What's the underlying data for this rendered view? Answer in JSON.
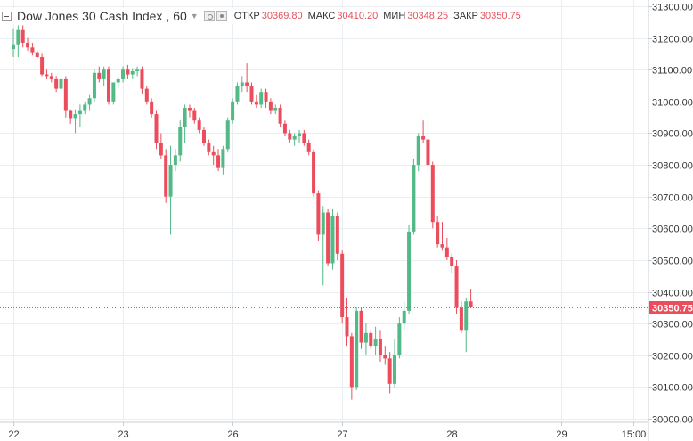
{
  "legend": {
    "symbol": "Dow Jones 30 Cash Index",
    "resolution": ", 60",
    "open_label": "ОТКР",
    "open_value": "30369.80",
    "high_label": "МАКС",
    "high_value": "30410.20",
    "low_label": "МИН",
    "low_value": "30348.25",
    "close_label": "ЗАКР",
    "close_value": "30350.75"
  },
  "colors": {
    "up": "#53b987",
    "down": "#eb4d5c",
    "grid": "#e9eef2",
    "axis_text": "#333333",
    "price_tag": "#eb4d5c"
  },
  "chart_data": {
    "type": "candlestick",
    "y_ticks": [
      30000,
      30100,
      30200,
      30300,
      30400,
      30500,
      30600,
      30700,
      30800,
      30900,
      31000,
      31100,
      31200,
      31300
    ],
    "y_tick_labels": [
      "30000.00",
      "30100.00",
      "30200.00",
      "30300.00",
      "30400.00",
      "30500.00",
      "30600.00",
      "30700.00",
      "30800.00",
      "30900.00",
      "31000.00",
      "31100.00",
      "31200.00",
      "31300.00"
    ],
    "ylim": [
      29980,
      31310
    ],
    "x_ticks": [
      {
        "label": "22",
        "bar": 0
      },
      {
        "label": "23",
        "bar": 23
      },
      {
        "label": "26",
        "bar": 46
      },
      {
        "label": "27",
        "bar": 69
      },
      {
        "label": "28",
        "bar": 92
      },
      {
        "label": "29",
        "bar": 115
      },
      {
        "label": "15:00",
        "bar": 130
      }
    ],
    "last_price": 30350.75,
    "last_price_label": "30350.75",
    "bars": [
      [
        31165,
        31230,
        31140,
        31180
      ],
      [
        31180,
        31240,
        31140,
        31225
      ],
      [
        31225,
        31240,
        31170,
        31185
      ],
      [
        31185,
        31200,
        31160,
        31170
      ],
      [
        31170,
        31185,
        31145,
        31155
      ],
      [
        31155,
        31160,
        31135,
        31140
      ],
      [
        31140,
        31150,
        31080,
        31085
      ],
      [
        31085,
        31100,
        31070,
        31080
      ],
      [
        31080,
        31090,
        31060,
        31070
      ],
      [
        31070,
        31080,
        31030,
        31040
      ],
      [
        31040,
        31090,
        31020,
        31070
      ],
      [
        31070,
        31080,
        30950,
        30970
      ],
      [
        30970,
        30975,
        30930,
        30945
      ],
      [
        30945,
        30975,
        30900,
        30960
      ],
      [
        30960,
        30990,
        30920,
        30970
      ],
      [
        30970,
        31000,
        30960,
        30990
      ],
      [
        30990,
        31020,
        30970,
        31010
      ],
      [
        31010,
        31100,
        31000,
        31090
      ],
      [
        31090,
        31110,
        31060,
        31070
      ],
      [
        31070,
        31110,
        31050,
        31100
      ],
      [
        31100,
        31110,
        30990,
        31000
      ],
      [
        31000,
        31060,
        30990,
        31060
      ],
      [
        31060,
        31080,
        31040,
        31070
      ],
      [
        31070,
        31110,
        31060,
        31100
      ],
      [
        31100,
        31115,
        31070,
        31085
      ],
      [
        31085,
        31105,
        31070,
        31095
      ],
      [
        31095,
        31110,
        31080,
        31100
      ],
      [
        31100,
        31110,
        31025,
        31040
      ],
      [
        31040,
        31050,
        30990,
        31000
      ],
      [
        31000,
        31010,
        30950,
        30960
      ],
      [
        30960,
        30970,
        30850,
        30870
      ],
      [
        30870,
        30900,
        30820,
        30830
      ],
      [
        30830,
        30850,
        30680,
        30700
      ],
      [
        30700,
        30860,
        30580,
        30800
      ],
      [
        30800,
        30850,
        30780,
        30830
      ],
      [
        30830,
        30940,
        30810,
        30920
      ],
      [
        30920,
        30990,
        30870,
        30980
      ],
      [
        30980,
        30990,
        30950,
        30970
      ],
      [
        30970,
        30980,
        30930,
        30940
      ],
      [
        30940,
        30950,
        30900,
        30910
      ],
      [
        30910,
        30920,
        30860,
        30870
      ],
      [
        30870,
        30880,
        30830,
        30840
      ],
      [
        30840,
        30860,
        30800,
        30830
      ],
      [
        30830,
        30850,
        30780,
        30790
      ],
      [
        30790,
        30860,
        30770,
        30850
      ],
      [
        30850,
        30950,
        30840,
        30940
      ],
      [
        30940,
        31010,
        30930,
        31000
      ],
      [
        31000,
        31060,
        30990,
        31050
      ],
      [
        31050,
        31080,
        31030,
        31060
      ],
      [
        31060,
        31120,
        31030,
        31050
      ],
      [
        31050,
        31060,
        30990,
        31000
      ],
      [
        31000,
        31020,
        30980,
        30990
      ],
      [
        30990,
        31040,
        30980,
        31030
      ],
      [
        31030,
        31040,
        30980,
        31000
      ],
      [
        31000,
        31010,
        30960,
        30970
      ],
      [
        30970,
        30990,
        30960,
        30980
      ],
      [
        30980,
        30990,
        30920,
        30930
      ],
      [
        30930,
        30940,
        30890,
        30900
      ],
      [
        30900,
        30910,
        30870,
        30880
      ],
      [
        30880,
        30900,
        30860,
        30890
      ],
      [
        30890,
        30910,
        30870,
        30900
      ],
      [
        30900,
        30910,
        30860,
        30870
      ],
      [
        30870,
        30880,
        30830,
        30840
      ],
      [
        30840,
        30850,
        30700,
        30710
      ],
      [
        30710,
        30720,
        30560,
        30580
      ],
      [
        30580,
        30670,
        30420,
        30650
      ],
      [
        30650,
        30660,
        30480,
        30490
      ],
      [
        30490,
        30660,
        30470,
        30640
      ],
      [
        30640,
        30650,
        30500,
        30520
      ],
      [
        30520,
        30530,
        30300,
        30320
      ],
      [
        30320,
        30380,
        30230,
        30260
      ],
      [
        30260,
        30270,
        30060,
        30100
      ],
      [
        30100,
        30350,
        30090,
        30340
      ],
      [
        30340,
        30350,
        30220,
        30240
      ],
      [
        30240,
        30300,
        30200,
        30270
      ],
      [
        30270,
        30280,
        30220,
        30230
      ],
      [
        30230,
        30290,
        30200,
        30250
      ],
      [
        30250,
        30280,
        30180,
        30200
      ],
      [
        30200,
        30230,
        30170,
        30190
      ],
      [
        30190,
        30210,
        30080,
        30110
      ],
      [
        30110,
        30250,
        30100,
        30200
      ],
      [
        30200,
        30320,
        30190,
        30300
      ],
      [
        30300,
        30370,
        30280,
        30340
      ],
      [
        30340,
        30610,
        30330,
        30590
      ],
      [
        30590,
        30820,
        30580,
        30800
      ],
      [
        30800,
        30900,
        30780,
        30890
      ],
      [
        30890,
        30940,
        30870,
        30880
      ],
      [
        30880,
        30940,
        30780,
        30800
      ],
      [
        30800,
        30810,
        30600,
        30620
      ],
      [
        30620,
        30640,
        30540,
        30550
      ],
      [
        30550,
        30620,
        30530,
        30540
      ],
      [
        30540,
        30570,
        30500,
        30510
      ],
      [
        30510,
        30520,
        30460,
        30480
      ],
      [
        30480,
        30500,
        30330,
        30350
      ],
      [
        30350,
        30370,
        30270,
        30280
      ],
      [
        30280,
        30380,
        30210,
        30370
      ],
      [
        30370,
        30410,
        30348,
        30351
      ]
    ]
  }
}
